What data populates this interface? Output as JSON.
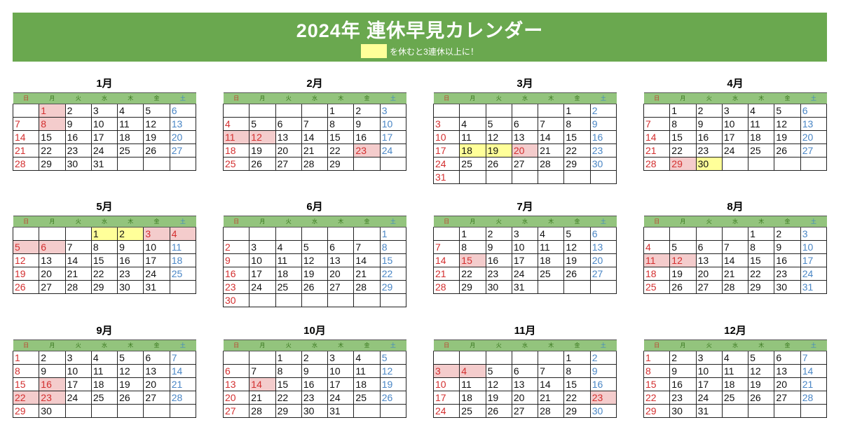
{
  "header": {
    "title": "2024年 連休早見カレンダー",
    "legend_text": "を休むと3連休以上に！",
    "legend_color": "#ffff99"
  },
  "year": 2024,
  "weekdays": [
    "日",
    "月",
    "火",
    "水",
    "木",
    "金",
    "土"
  ],
  "colors": {
    "holiday": "#f4cccc",
    "leave": "#ffff99",
    "sunday": "#d32f2f",
    "saturday": "#4a86c5",
    "banner": "#6aa84f"
  },
  "months": [
    {
      "label": "1月",
      "holidays": [
        1,
        8
      ],
      "leave": []
    },
    {
      "label": "2月",
      "holidays": [
        11,
        12,
        23
      ],
      "leave": []
    },
    {
      "label": "3月",
      "holidays": [
        20
      ],
      "leave": [
        18,
        19
      ]
    },
    {
      "label": "4月",
      "holidays": [
        29
      ],
      "leave": [
        30
      ]
    },
    {
      "label": "5月",
      "holidays": [
        3,
        4,
        5,
        6
      ],
      "leave": [
        1,
        2
      ]
    },
    {
      "label": "6月",
      "holidays": [],
      "leave": []
    },
    {
      "label": "7月",
      "holidays": [
        15
      ],
      "leave": []
    },
    {
      "label": "8月",
      "holidays": [
        11,
        12
      ],
      "leave": []
    },
    {
      "label": "9月",
      "holidays": [
        16,
        22,
        23
      ],
      "leave": []
    },
    {
      "label": "10月",
      "holidays": [
        14
      ],
      "leave": []
    },
    {
      "label": "11月",
      "holidays": [
        3,
        4,
        23
      ],
      "leave": []
    },
    {
      "label": "12月",
      "holidays": [],
      "leave": []
    }
  ]
}
